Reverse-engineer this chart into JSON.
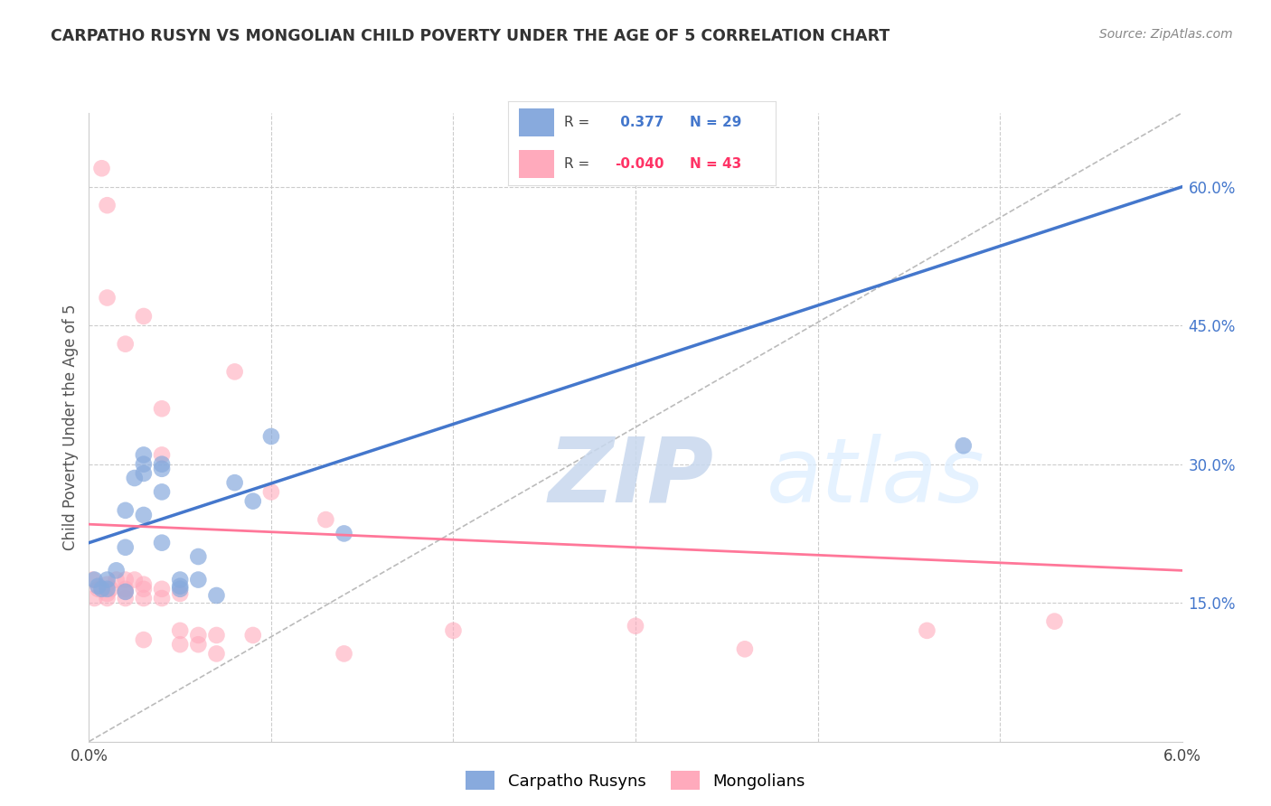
{
  "title": "CARPATHO RUSYN VS MONGOLIAN CHILD POVERTY UNDER THE AGE OF 5 CORRELATION CHART",
  "source": "Source: ZipAtlas.com",
  "ylabel": "Child Poverty Under the Age of 5",
  "xlim": [
    0.0,
    0.06
  ],
  "ylim": [
    0.0,
    0.68
  ],
  "grid_color": "#cccccc",
  "background_color": "#ffffff",
  "blue_color": "#88aadd",
  "pink_color": "#ffaabc",
  "blue_line_color": "#4477cc",
  "pink_line_color": "#ff7799",
  "dashed_line_color": "#bbbbbb",
  "legend_R_blue": " 0.377",
  "legend_N_blue": "29",
  "legend_R_pink": "-0.040",
  "legend_N_pink": "43",
  "blue_line_x0": 0.0,
  "blue_line_y0": 0.215,
  "blue_line_x1": 0.06,
  "blue_line_y1": 0.6,
  "pink_line_x0": 0.0,
  "pink_line_y0": 0.235,
  "pink_line_x1": 0.06,
  "pink_line_y1": 0.185,
  "blue_points_x": [
    0.0003,
    0.0005,
    0.0007,
    0.001,
    0.001,
    0.0015,
    0.002,
    0.002,
    0.002,
    0.0025,
    0.003,
    0.003,
    0.003,
    0.003,
    0.004,
    0.004,
    0.004,
    0.004,
    0.005,
    0.005,
    0.005,
    0.006,
    0.006,
    0.007,
    0.008,
    0.009,
    0.01,
    0.014,
    0.048
  ],
  "blue_points_y": [
    0.175,
    0.168,
    0.165,
    0.175,
    0.165,
    0.185,
    0.162,
    0.21,
    0.25,
    0.285,
    0.245,
    0.29,
    0.3,
    0.31,
    0.295,
    0.3,
    0.27,
    0.215,
    0.175,
    0.168,
    0.165,
    0.175,
    0.2,
    0.158,
    0.28,
    0.26,
    0.33,
    0.225,
    0.32
  ],
  "pink_points_x": [
    0.0002,
    0.0003,
    0.0005,
    0.0007,
    0.001,
    0.001,
    0.001,
    0.001,
    0.0012,
    0.0015,
    0.002,
    0.002,
    0.002,
    0.002,
    0.002,
    0.0025,
    0.003,
    0.003,
    0.003,
    0.003,
    0.004,
    0.004,
    0.004,
    0.004,
    0.005,
    0.005,
    0.005,
    0.006,
    0.006,
    0.007,
    0.007,
    0.008,
    0.009,
    0.01,
    0.013,
    0.014,
    0.02,
    0.03,
    0.036,
    0.046,
    0.053,
    0.001,
    0.003
  ],
  "pink_points_y": [
    0.175,
    0.155,
    0.165,
    0.62,
    0.155,
    0.16,
    0.17,
    0.58,
    0.165,
    0.175,
    0.155,
    0.165,
    0.162,
    0.175,
    0.43,
    0.175,
    0.155,
    0.165,
    0.17,
    0.46,
    0.155,
    0.165,
    0.31,
    0.36,
    0.105,
    0.12,
    0.16,
    0.105,
    0.115,
    0.095,
    0.115,
    0.4,
    0.115,
    0.27,
    0.24,
    0.095,
    0.12,
    0.125,
    0.1,
    0.12,
    0.13,
    0.48,
    0.11
  ]
}
